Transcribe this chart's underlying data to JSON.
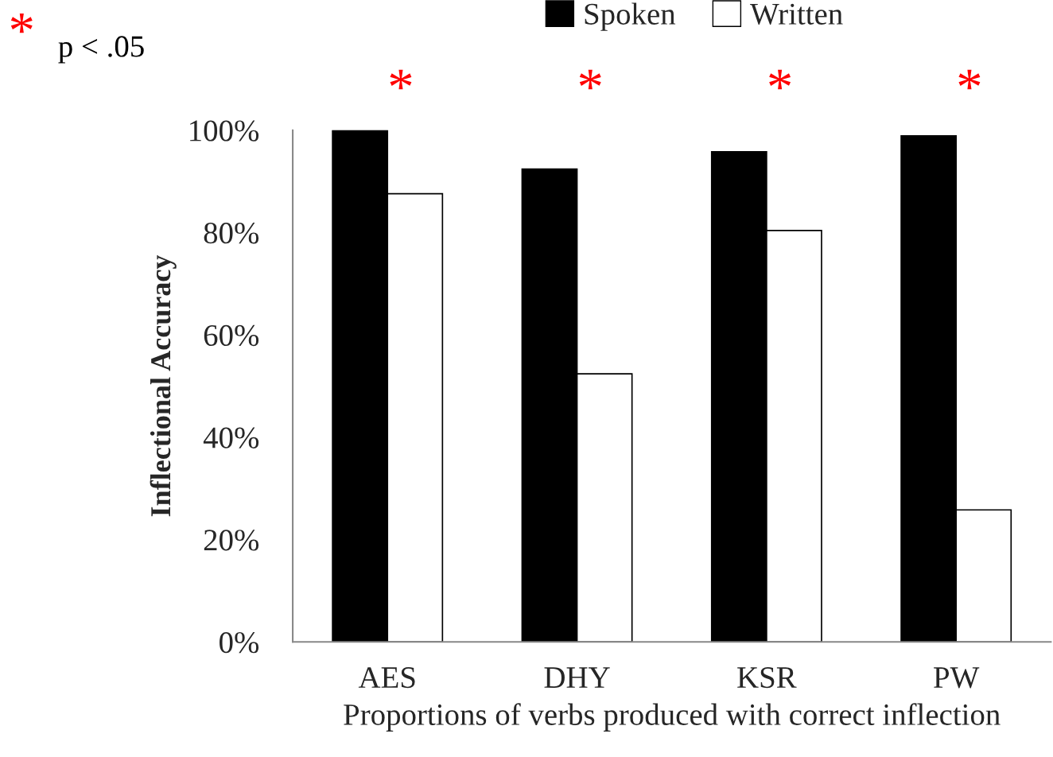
{
  "chart_data": {
    "type": "bar",
    "xlabel": "Proportions of verbs produced with correct inflection",
    "ylabel": "Inflectional Accuracy",
    "categories": [
      "AES",
      "DHY",
      "KSR",
      "PW"
    ],
    "series": [
      {
        "name": "Spoken",
        "color": "#000000",
        "values": [
          100,
          92.4,
          95.8,
          98.9
        ]
      },
      {
        "name": "Written",
        "color": "#ffffff",
        "values": [
          87.6,
          52.4,
          80.4,
          25.8
        ]
      }
    ],
    "ylim": [
      0,
      100
    ],
    "yticks": [
      {
        "value": 0,
        "label": "0%"
      },
      {
        "value": 20,
        "label": "20%"
      },
      {
        "value": 40,
        "label": "40%"
      },
      {
        "value": 60,
        "label": "60%"
      },
      {
        "value": 80,
        "label": "80%"
      },
      {
        "value": 100,
        "label": "100%"
      }
    ],
    "grid": false,
    "legend": "top",
    "annotations": [
      "* p < .05",
      "*",
      "*",
      "*",
      "*"
    ]
  }
}
